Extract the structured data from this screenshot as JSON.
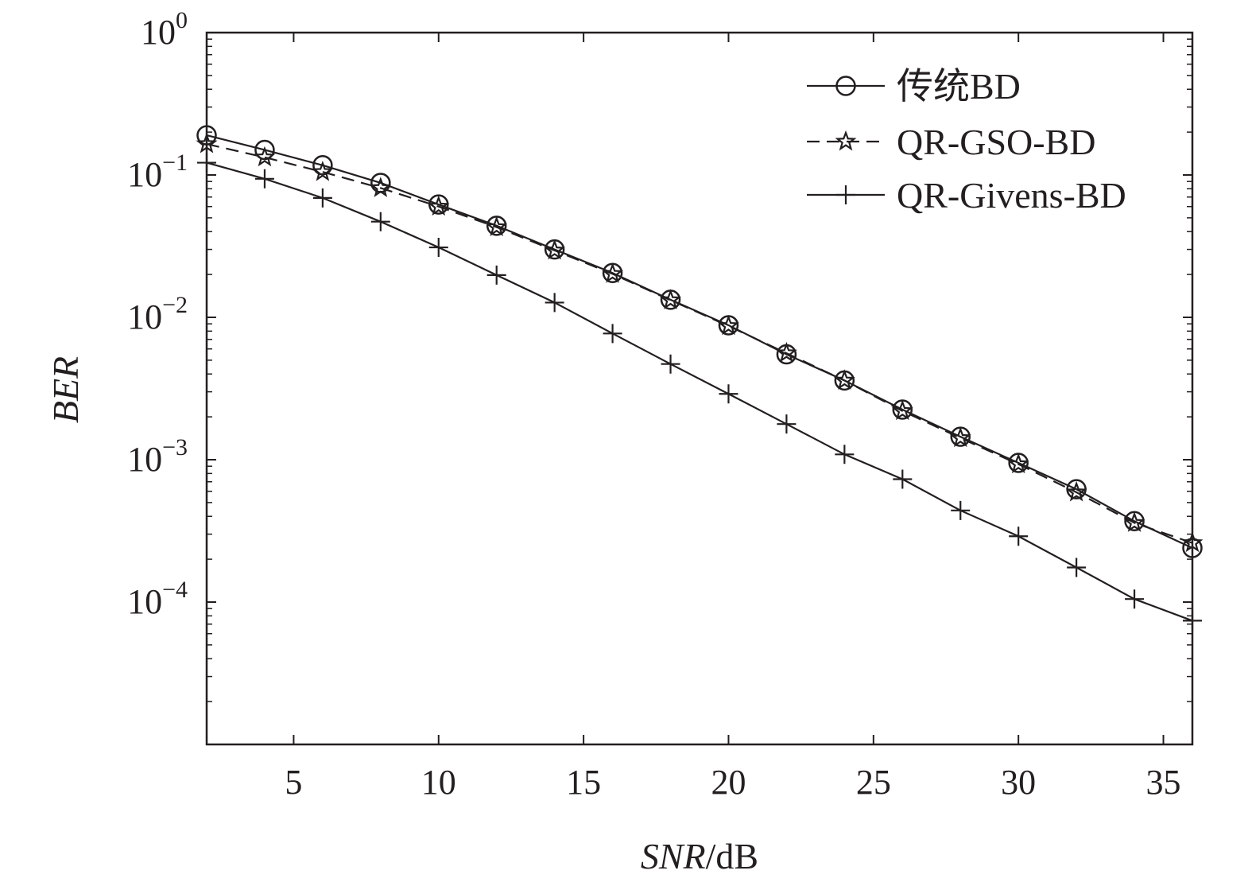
{
  "chart_data": {
    "type": "line",
    "x": [
      2,
      4,
      6,
      8,
      10,
      12,
      14,
      16,
      18,
      20,
      22,
      24,
      26,
      28,
      30,
      32,
      34,
      36
    ],
    "series": [
      {
        "name": "传统BD",
        "marker": "circle",
        "line_style": "solid",
        "values": [
          0.19,
          0.15,
          0.117,
          0.088,
          0.062,
          0.044,
          0.03,
          0.0205,
          0.0133,
          0.0088,
          0.0055,
          0.0036,
          0.00225,
          0.00145,
          0.00095,
          0.00062,
          0.00037,
          0.00024
        ]
      },
      {
        "name": "QR-GSO-BD",
        "marker": "star",
        "line_style": "dashed",
        "values": [
          0.165,
          0.133,
          0.105,
          0.081,
          0.06,
          0.043,
          0.0295,
          0.0202,
          0.0132,
          0.0087,
          0.0056,
          0.0036,
          0.0022,
          0.00142,
          0.00093,
          0.00059,
          0.00036,
          0.00026
        ]
      },
      {
        "name": "QR-Givens-BD",
        "marker": "plus",
        "line_style": "solid",
        "values": [
          0.122,
          0.094,
          0.069,
          0.047,
          0.031,
          0.0198,
          0.0127,
          0.0077,
          0.0047,
          0.0029,
          0.00178,
          0.00109,
          0.00073,
          0.00044,
          0.00029,
          0.000175,
          0.000105,
          7.4e-05
        ]
      }
    ],
    "title": "",
    "xlabel": "SNR/dB",
    "xlabel_italic_part": "SNR",
    "xlabel_unit_part": "/dB",
    "ylabel": "BER",
    "xlim": [
      2,
      36
    ],
    "ylim": [
      1e-05,
      1
    ],
    "y_scale": "log",
    "x_ticks": [
      5,
      10,
      15,
      20,
      25,
      30,
      35
    ],
    "y_ticks": [
      {
        "base": "10",
        "exp": "0"
      },
      {
        "base": "10",
        "exp": "−1"
      },
      {
        "base": "10",
        "exp": "−2"
      },
      {
        "base": "10",
        "exp": "−3"
      },
      {
        "base": "10",
        "exp": "−4"
      }
    ],
    "grid": false,
    "legend_position": "top-right",
    "colors": {
      "line": "#231f20",
      "background": "#ffffff"
    }
  }
}
